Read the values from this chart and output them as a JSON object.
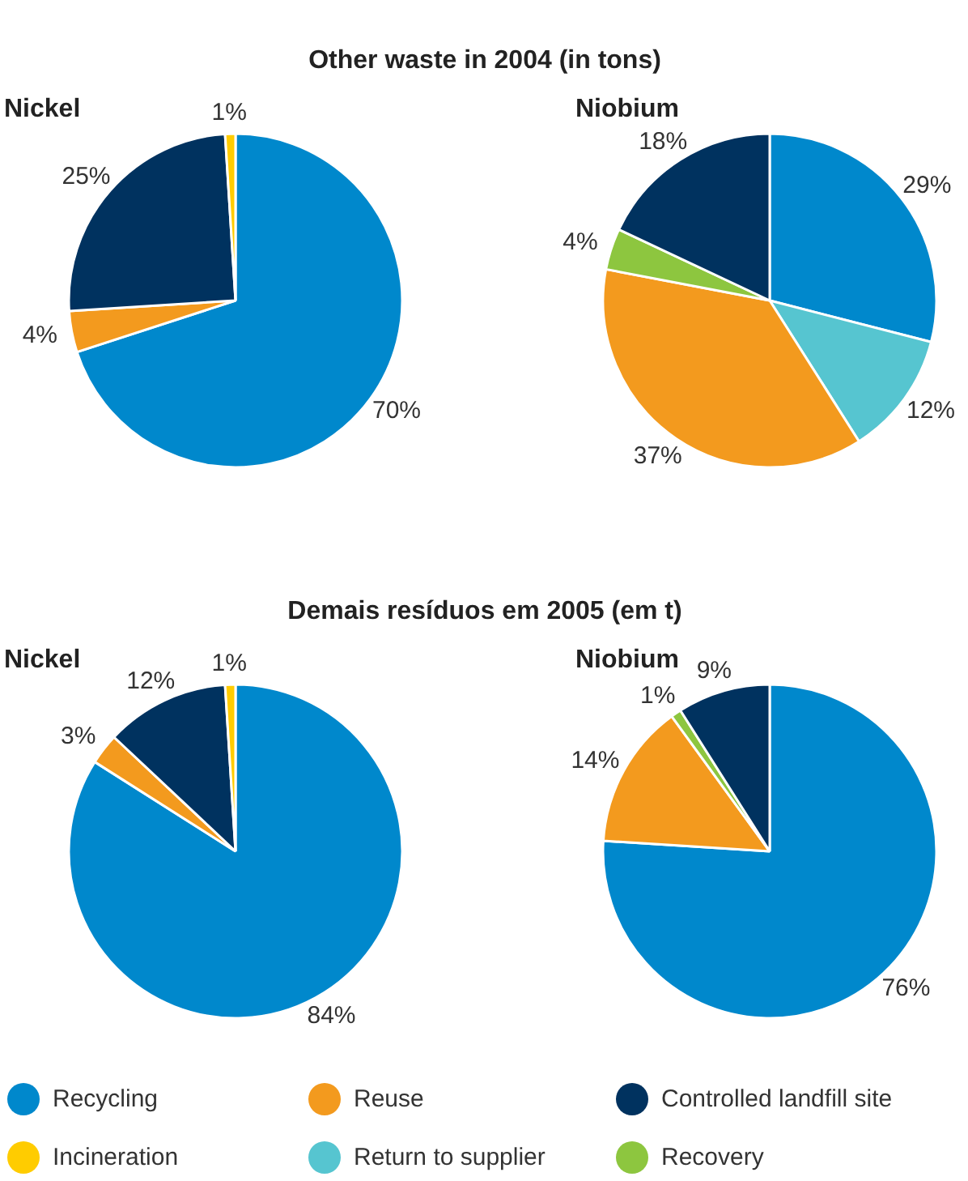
{
  "chart_data": [
    {
      "type": "pie",
      "annotations": [
        "Other waste in 2004 (in tons)"
      ],
      "title": "Nickel",
      "categories": [
        "Recycling",
        "Reuse",
        "Controlled landfill site",
        "Incineration"
      ],
      "values": [
        70,
        4,
        25,
        1
      ],
      "colors": [
        "#0088cc",
        "#f39a1e",
        "#00325f",
        "#ffcc00"
      ],
      "value_labels": [
        "70%",
        "4%",
        "25%",
        "1%"
      ],
      "legend": "bottom"
    },
    {
      "type": "pie",
      "title": "Niobium",
      "categories": [
        null,
        "Return to supplier",
        null,
        "Recovery",
        null
      ],
      "values": [
        29,
        12,
        37,
        4,
        18
      ],
      "colors": [
        "#0088cc",
        "#56c5d0",
        "#f39a1e",
        "#8dc63f",
        "#00325f"
      ],
      "value_labels": [
        "29%",
        "12%",
        "37%",
        "4%",
        "18%"
      ],
      "legend": "bottom"
    },
    {
      "type": "pie",
      "annotations": [
        "Demais resíduos em 2005 (em t)"
      ],
      "title": "Nickel",
      "categories": [
        null,
        null,
        null,
        null
      ],
      "values": [
        84,
        3,
        12,
        1
      ],
      "colors": [
        "#0088cc",
        "#f39a1e",
        "#00325f",
        "#ffcc00"
      ],
      "value_labels": [
        "84%",
        "3%",
        "12%",
        "1%"
      ]
    },
    {
      "type": "pie",
      "title": "Niobium",
      "categories": [
        null,
        null,
        null,
        null
      ],
      "values": [
        76,
        14,
        1,
        9
      ],
      "colors": [
        "#0088cc",
        "#f39a1e",
        "#8dc63f",
        "#00325f"
      ],
      "value_labels": [
        "76%",
        "14%",
        "1%",
        "9%"
      ]
    }
  ]
}
